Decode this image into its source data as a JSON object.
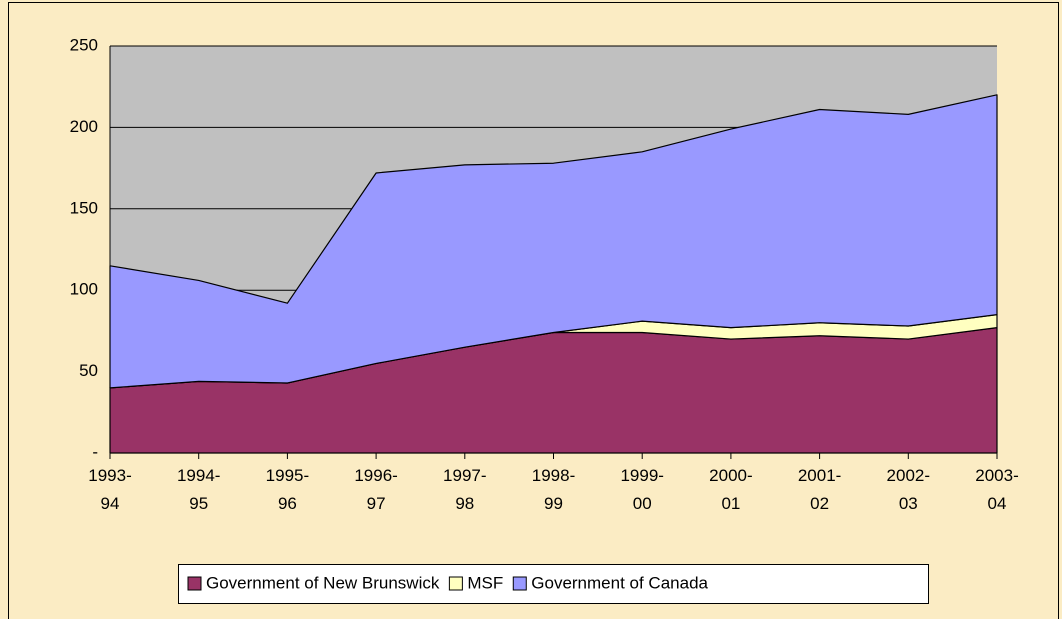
{
  "chart_data": {
    "type": "stacked_area",
    "categories": [
      "1993-94",
      "1994-95",
      "1995-96",
      "1996-97",
      "1997-98",
      "1998-99",
      "1999-00",
      "2000-01",
      "2001-02",
      "2002-03",
      "2003-04"
    ],
    "series": [
      {
        "name": "Government of New Brunswick",
        "color": "#993366",
        "values": [
          40,
          44,
          43,
          55,
          65,
          74,
          74,
          70,
          72,
          70,
          77
        ]
      },
      {
        "name": "MSF",
        "color": "#ffffc0",
        "values": [
          0,
          0,
          0,
          0,
          0,
          0,
          7,
          7,
          8,
          8,
          8
        ]
      },
      {
        "name": "Government of Canada",
        "color": "#9999ff",
        "values": [
          75,
          62,
          49,
          117,
          112,
          104,
          104,
          122,
          131,
          130,
          135
        ]
      }
    ],
    "ylim": [
      0,
      250
    ],
    "yticks": [
      {
        "value": 0,
        "label": "-"
      },
      50,
      100,
      150,
      200,
      250
    ],
    "grid": true,
    "legend": "bottom"
  }
}
